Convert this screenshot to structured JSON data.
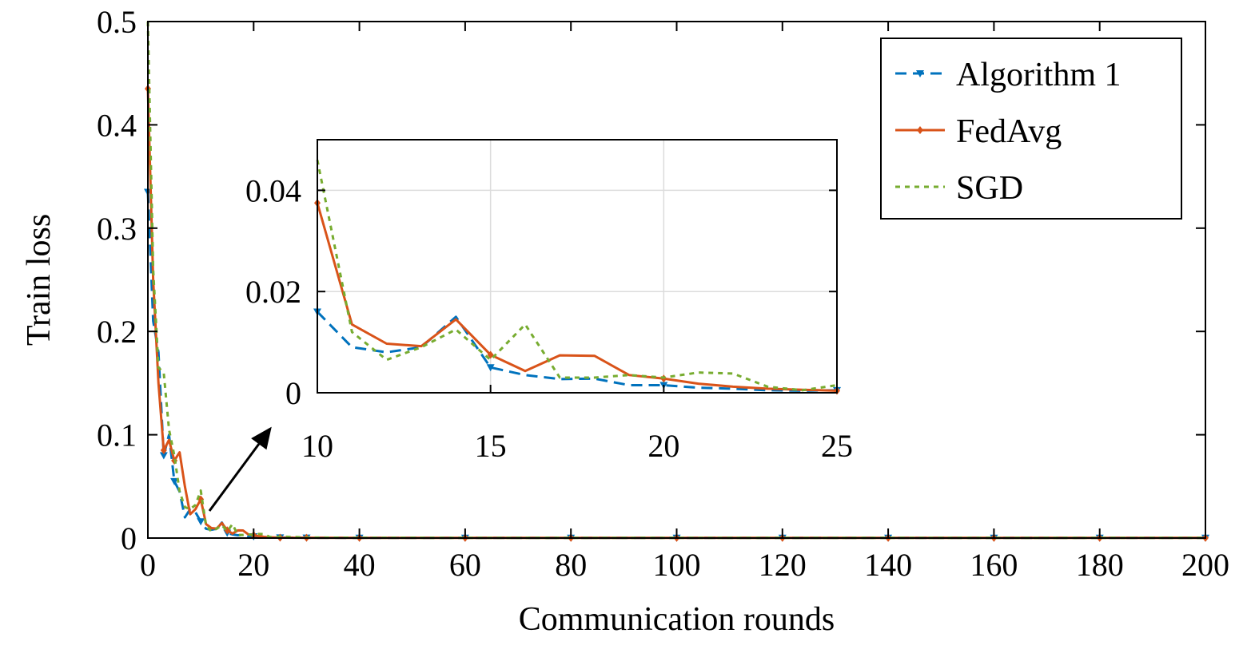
{
  "chart_data": [
    {
      "type": "line",
      "title": "",
      "xlabel": "Communication rounds",
      "ylabel": "Train loss",
      "xlim": [
        0,
        200
      ],
      "ylim": [
        0,
        0.5
      ],
      "xticks": [
        0,
        20,
        40,
        60,
        80,
        100,
        120,
        140,
        160,
        180,
        200
      ],
      "yticks": [
        0,
        0.1,
        0.2,
        0.3,
        0.4,
        0.5
      ],
      "xtick_labels": [
        "0",
        "20",
        "40",
        "60",
        "80",
        "100",
        "120",
        "140",
        "160",
        "180",
        "200"
      ],
      "ytick_labels": [
        "0",
        "0.1",
        "0.2",
        "0.3",
        "0.4",
        "0.5"
      ],
      "grid": false,
      "legend_position": "top-right",
      "series": [
        {
          "name": "Algorithm 1",
          "color": "#0072BD",
          "style": "dashed",
          "marker": "down-triangle",
          "x": [
            0,
            1,
            2,
            3,
            4,
            5,
            6,
            7,
            8,
            9,
            10,
            11,
            12,
            13,
            14,
            15,
            16,
            17,
            18,
            19,
            20,
            21,
            22,
            23,
            24,
            25,
            30,
            40,
            60,
            80,
            100,
            120,
            140,
            160,
            180,
            200
          ],
          "y": [
            0.335,
            0.21,
            0.18,
            0.08,
            0.1,
            0.055,
            0.045,
            0.02,
            0.028,
            0.025,
            0.016,
            0.009,
            0.008,
            0.009,
            0.015,
            0.005,
            0.0035,
            0.0027,
            0.0028,
            0.0015,
            0.0015,
            0.001,
            0.0008,
            0.0005,
            0.0004,
            0.0005,
            0.0003,
            0.0002,
            0.0002,
            0.0002,
            0.0002,
            0.0002,
            0.0002,
            0.0002,
            0.0002,
            0.0002
          ]
        },
        {
          "name": "FedAvg",
          "color": "#D95319",
          "style": "solid",
          "marker": "diamond",
          "x": [
            0,
            1,
            2,
            3,
            4,
            5,
            6,
            7,
            8,
            9,
            10,
            11,
            12,
            13,
            14,
            15,
            16,
            17,
            18,
            19,
            20,
            21,
            22,
            23,
            24,
            25,
            30,
            40,
            60,
            80,
            100,
            120,
            140,
            160,
            180,
            200
          ],
          "y": [
            0.435,
            0.25,
            0.15,
            0.085,
            0.095,
            0.075,
            0.083,
            0.05,
            0.023,
            0.028,
            0.0375,
            0.0135,
            0.0097,
            0.0092,
            0.0145,
            0.0075,
            0.0043,
            0.0074,
            0.0073,
            0.0035,
            0.0028,
            0.0018,
            0.0012,
            0.0008,
            0.0006,
            0.0004,
            0.0003,
            0.0002,
            0.0002,
            0.0002,
            0.0002,
            0.0002,
            0.0002,
            0.0002,
            0.0002,
            0.0002
          ]
        },
        {
          "name": "SGD",
          "color": "#77AC30",
          "style": "dotted",
          "marker": "none",
          "x": [
            0,
            1,
            2,
            3,
            4,
            5,
            6,
            7,
            8,
            9,
            10,
            11,
            12,
            13,
            14,
            15,
            16,
            17,
            18,
            19,
            20,
            21,
            22,
            23,
            24,
            25,
            30,
            40,
            60,
            80,
            100,
            120,
            140,
            160,
            180,
            200
          ],
          "y": [
            0.5,
            0.26,
            0.165,
            0.16,
            0.105,
            0.08,
            0.045,
            0.03,
            0.028,
            0.032,
            0.046,
            0.012,
            0.0065,
            0.009,
            0.0125,
            0.0065,
            0.0135,
            0.003,
            0.003,
            0.0035,
            0.003,
            0.004,
            0.0038,
            0.0012,
            0.0005,
            0.0015,
            0.0005,
            0.0003,
            0.0002,
            0.0002,
            0.0002,
            0.0002,
            0.0002,
            0.0002,
            0.0002,
            0.0002
          ]
        }
      ]
    },
    {
      "type": "line",
      "title": "",
      "xlabel": "",
      "ylabel": "",
      "xlim": [
        10,
        25
      ],
      "ylim": [
        0,
        0.05
      ],
      "xticks": [
        10,
        15,
        20,
        25
      ],
      "yticks": [
        0,
        0.02,
        0.04
      ],
      "xtick_labels": [
        "10",
        "15",
        "20",
        "25"
      ],
      "ytick_labels": [
        "0",
        "0.02",
        "0.04"
      ],
      "grid": true,
      "series": [
        {
          "name": "Algorithm 1",
          "x": [
            10,
            11,
            12,
            13,
            14,
            15,
            16,
            17,
            18,
            19,
            20,
            21,
            22,
            23,
            24,
            25
          ],
          "y": [
            0.016,
            0.009,
            0.008,
            0.009,
            0.015,
            0.005,
            0.0035,
            0.0027,
            0.0028,
            0.0015,
            0.0015,
            0.001,
            0.0008,
            0.0005,
            0.0004,
            0.0005
          ]
        },
        {
          "name": "FedAvg",
          "x": [
            10,
            11,
            12,
            13,
            14,
            15,
            16,
            17,
            18,
            19,
            20,
            21,
            22,
            23,
            24,
            25
          ],
          "y": [
            0.0375,
            0.0135,
            0.0097,
            0.0092,
            0.0145,
            0.0075,
            0.0043,
            0.0074,
            0.0073,
            0.0035,
            0.0028,
            0.0018,
            0.0012,
            0.0008,
            0.0006,
            0.0004
          ]
        },
        {
          "name": "SGD",
          "x": [
            10,
            11,
            12,
            13,
            14,
            15,
            16,
            17,
            18,
            19,
            20,
            21,
            22,
            23,
            24,
            25
          ],
          "y": [
            0.046,
            0.012,
            0.0065,
            0.009,
            0.0125,
            0.0065,
            0.0135,
            0.003,
            0.003,
            0.0035,
            0.003,
            0.004,
            0.0038,
            0.0012,
            0.0005,
            0.0015
          ]
        }
      ]
    }
  ]
}
